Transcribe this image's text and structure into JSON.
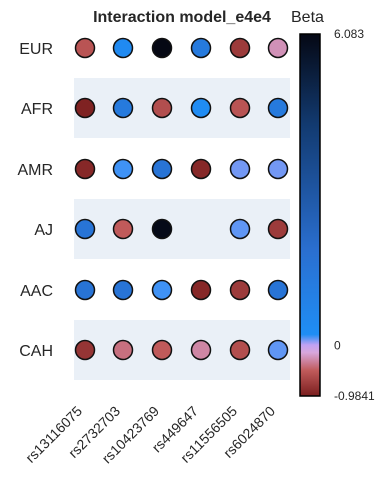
{
  "chart_data": {
    "type": "heatmap",
    "title": "Interaction model_e4e4",
    "colorbar_title": "Beta",
    "colorbar_range": [
      -0.9841,
      6.083
    ],
    "colorbar_ticks": [
      {
        "value": 6.083,
        "label": "6.083"
      },
      {
        "value": 0,
        "label": "0"
      },
      {
        "value": -0.9841,
        "label": "-0.9841"
      }
    ],
    "rows": [
      "EUR",
      "AFR",
      "AMR",
      "AJ",
      "AAC",
      "CAH"
    ],
    "columns": [
      "rs13116075",
      "rs2732703",
      "rs10423769",
      "rs449647",
      "rs11556505",
      "rs6024870"
    ],
    "values": [
      [
        -0.55,
        0.45,
        6.083,
        1.4,
        -0.75,
        -0.25
      ],
      [
        -0.95,
        1.4,
        -0.6,
        0.35,
        -0.55,
        1.4
      ],
      [
        -0.9,
        0.2,
        1.7,
        -0.9,
        0.12,
        0.12
      ],
      [
        1.7,
        -0.5,
        6.0,
        null,
        0.15,
        -0.75
      ],
      [
        1.7,
        1.7,
        0.2,
        -0.9,
        -0.75,
        1.7
      ],
      [
        -0.8,
        -0.4,
        -0.5,
        -0.3,
        -0.6,
        0.15
      ]
    ],
    "grid": false,
    "row_bands": "alternating"
  }
}
